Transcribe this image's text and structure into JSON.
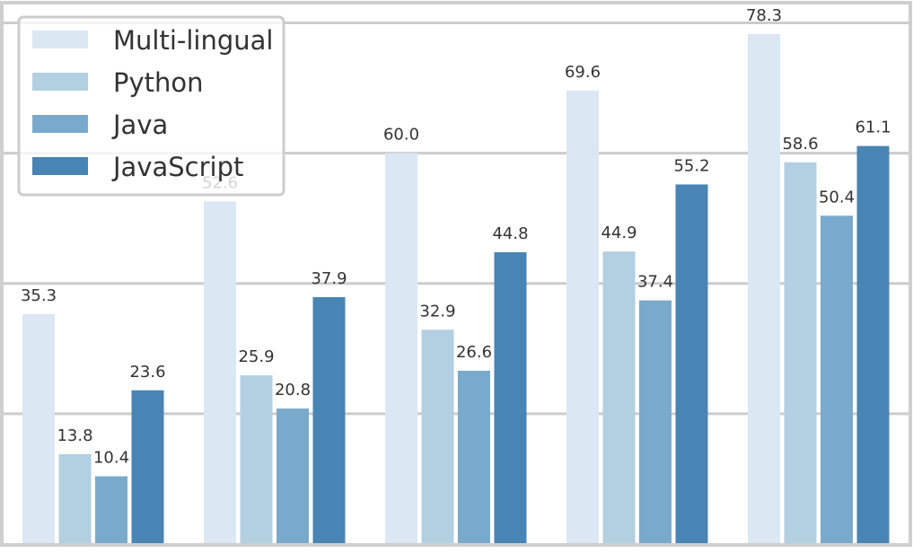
{
  "chart_data": {
    "type": "bar",
    "title": "",
    "xlabel": "",
    "ylabel": "",
    "categories": [
      "",
      "",
      "",
      "",
      ""
    ],
    "ylim": [
      0,
      82
    ],
    "grid": true,
    "legend_position": "top-left",
    "series": [
      {
        "name": "Multi-lingual",
        "color": "#dbe7f3",
        "values": [
          35.3,
          52.6,
          60.0,
          69.6,
          78.3
        ]
      },
      {
        "name": "Python",
        "color": "#b3cfe2",
        "values": [
          13.8,
          25.9,
          32.9,
          44.9,
          58.6
        ]
      },
      {
        "name": "Java",
        "color": "#7aaacb",
        "values": [
          10.4,
          20.8,
          26.6,
          37.4,
          50.4
        ]
      },
      {
        "name": "JavaScript",
        "color": "#4884b4",
        "values": [
          23.6,
          37.9,
          44.8,
          55.2,
          61.1
        ]
      }
    ],
    "data_labels": [
      [
        "35.3",
        "52.6",
        "60.0",
        "69.6",
        "78.3"
      ],
      [
        "13.8",
        "25.9",
        "32.9",
        "44.9",
        "58.6"
      ],
      [
        "10.4",
        "20.8",
        "26.6",
        "37.4",
        "50.4"
      ],
      [
        "23.6",
        "37.9",
        "44.8",
        "55.2",
        "61.1"
      ]
    ]
  }
}
